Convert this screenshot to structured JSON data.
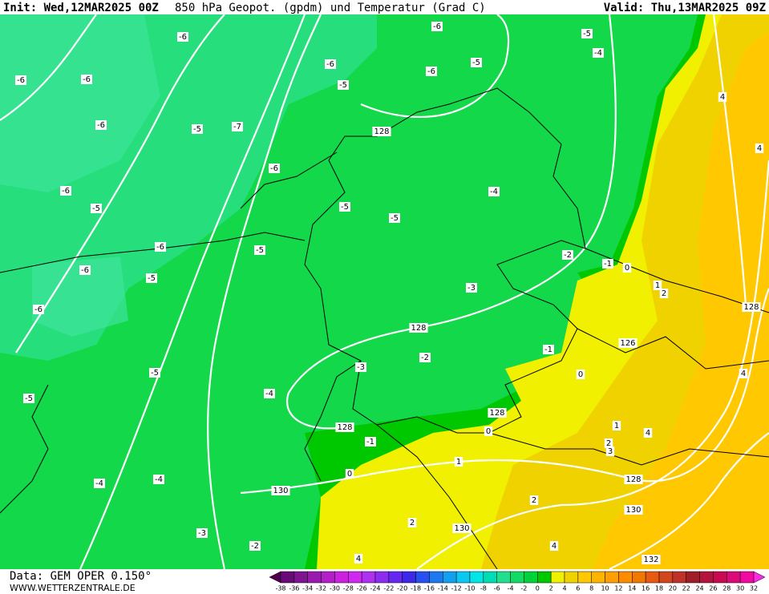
{
  "header": {
    "init": "Init: Wed,12MAR2025 00Z",
    "title": "850 hPa Geopot. (gpdm) und Temperatur (Grad C)",
    "valid": "Valid: Thu,13MAR2025 09Z"
  },
  "footer": {
    "data": "Data: GEM OPER 0.150°",
    "site": "WWW.WETTERZENTRALE.DE"
  },
  "contour_labels": [
    -6,
    -6,
    -6,
    -5,
    -4,
    -5,
    -6,
    -5,
    -6,
    -6,
    -6,
    -5,
    -7,
    128,
    -6,
    -6,
    -5,
    -4,
    -5,
    -5,
    -6,
    -5,
    -6,
    -5,
    -2,
    -1,
    0,
    1,
    2,
    -3,
    -6,
    128,
    128,
    -2,
    -1,
    126,
    -3,
    -5,
    0,
    4,
    -4,
    -5,
    128,
    128,
    0,
    -1,
    1,
    2,
    3,
    4,
    1,
    0,
    -4,
    -4,
    128,
    130,
    2,
    130,
    2,
    130,
    -3,
    -2,
    4,
    4,
    132,
    4,
    4
  ],
  "legend": {
    "values": [
      -38,
      -36,
      -34,
      -32,
      -30,
      -28,
      -26,
      -24,
      -22,
      -20,
      -18,
      -16,
      -14,
      -12,
      -10,
      -8,
      -6,
      -4,
      -2,
      0,
      2,
      4,
      6,
      8,
      10,
      12,
      14,
      16,
      18,
      20,
      22,
      24,
      26,
      28,
      30,
      32
    ],
    "colors": [
      "#500050",
      "#6a0a78",
      "#7d1490",
      "#9a1ab0",
      "#b41ec8",
      "#cc22e0",
      "#d028f0",
      "#b030f0",
      "#8c2cf0",
      "#6428f0",
      "#3c28e6",
      "#2850f0",
      "#1e78f0",
      "#14a0f0",
      "#0ac8f0",
      "#00e6e6",
      "#00dcb4",
      "#20e090",
      "#10dc64",
      "#00d23c",
      "#00c800",
      "#f0f000",
      "#f0d200",
      "#ffc800",
      "#ffb400",
      "#ffa000",
      "#ff8c00",
      "#f07800",
      "#e65a14",
      "#d2461e",
      "#be3228",
      "#a01e28",
      "#b4143c",
      "#c80a50",
      "#dc0a78",
      "#f00aa0",
      "#ff28e6"
    ]
  }
}
